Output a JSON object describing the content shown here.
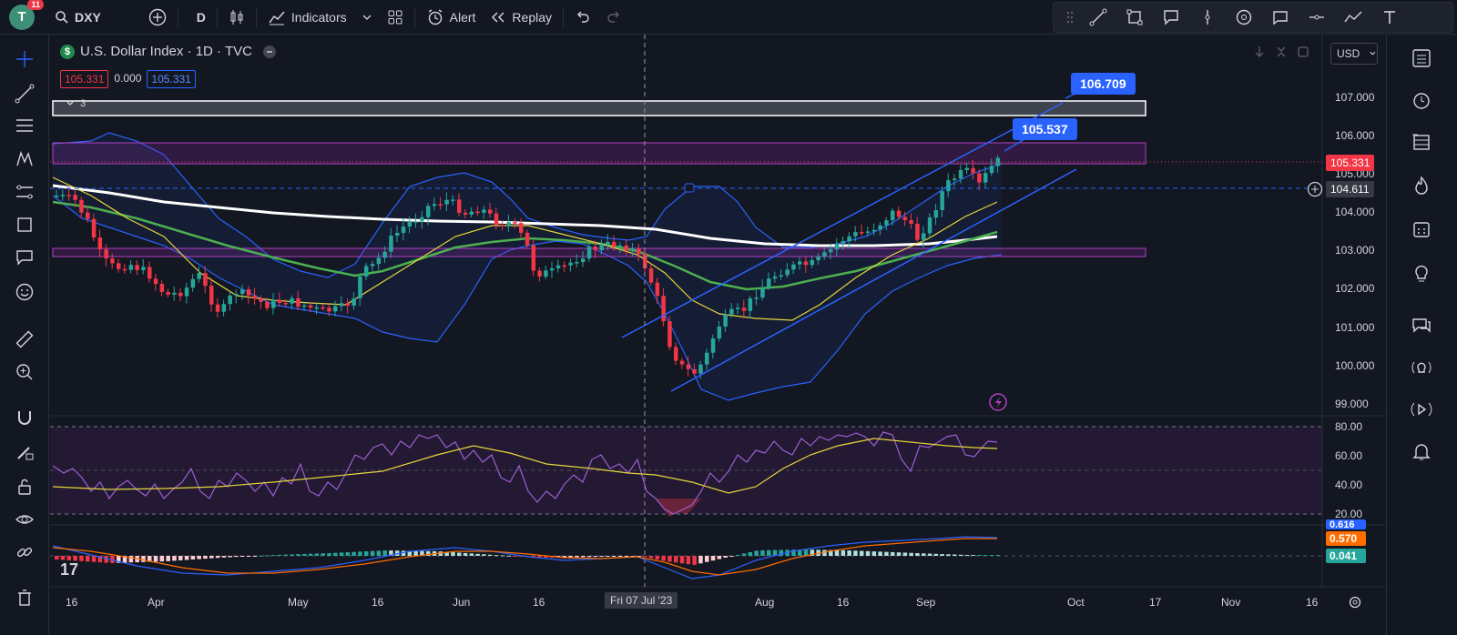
{
  "topbar": {
    "avatar_letter": "T",
    "avatar_badge": "11",
    "symbol": "DXY",
    "interval": "D",
    "indicators_label": "Indicators",
    "alert_label": "Alert",
    "replay_label": "Replay"
  },
  "legend": {
    "title": "U.S. Dollar Index · 1D · TVC",
    "currency_icon": "$",
    "value_red": "105.331",
    "value_change": "0.000",
    "value_blue": "105.331",
    "group_count": "3"
  },
  "currency_button": "USD",
  "price_axis": {
    "labels": [
      "107.000",
      "106.000",
      "105.000",
      "104.000",
      "103.000",
      "102.000",
      "101.000",
      "100.000",
      "99.000"
    ],
    "current_price": "105.331",
    "crosshair_price": "104.611"
  },
  "rsi_axis": {
    "labels": [
      "80.00",
      "60.00",
      "40.00",
      "20.00"
    ]
  },
  "macd_axis": {
    "cut_label": "0.616",
    "orange_label": "0.570",
    "teal_label": "0.041"
  },
  "callouts": {
    "upper": "106.709",
    "lower": "105.537"
  },
  "time_axis": {
    "labels": [
      "16",
      "Apr",
      "May",
      "16",
      "Jun",
      "16",
      "Aug",
      "16",
      "Sep",
      "Oct",
      "17",
      "Nov",
      "16"
    ],
    "crosshair_date": "Fri 07 Jul '23"
  },
  "colors": {
    "background": "#131722",
    "up": "#26a69a",
    "down": "#f23645",
    "accent_blue": "#2962ff",
    "rsi": "#9c5fd4",
    "ma_yellow": "#e6d63b",
    "ma_green": "#4caf50",
    "ma_white": "#ffffff",
    "band_blue": "#2962ff"
  }
}
